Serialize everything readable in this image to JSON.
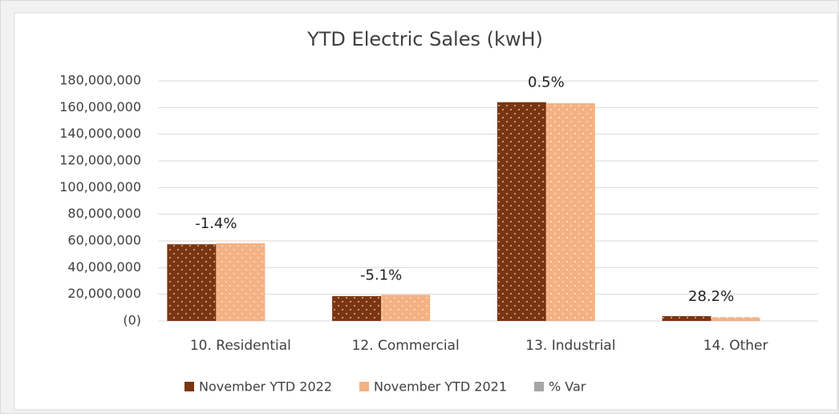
{
  "chart_data": {
    "type": "bar",
    "title": "YTD Electric Sales (kwH)",
    "categories": [
      "10. Residential",
      "12. Commercial",
      "13. Industrial",
      "14. Other"
    ],
    "series": [
      {
        "name": "November YTD 2022",
        "color": "#7b3510",
        "values": [
          57500000,
          18600000,
          164000000,
          3600000
        ]
      },
      {
        "name": "November YTD 2021",
        "color": "#f4b183",
        "values": [
          58300000,
          19600000,
          163200000,
          2800000
        ]
      },
      {
        "name": "% Var",
        "color": "#a5a5a5",
        "values": [
          -1.4,
          -5.1,
          0.5,
          28.2
        ],
        "value_labels": [
          "-1.4%",
          "-5.1%",
          "0.5%",
          "28.2%"
        ]
      }
    ],
    "ylim": [
      0,
      180000000
    ],
    "yticks": [
      {
        "value": 0,
        "label": "(0)"
      },
      {
        "value": 20000000,
        "label": "20,000,000"
      },
      {
        "value": 40000000,
        "label": "40,000,000"
      },
      {
        "value": 60000000,
        "label": "60,000,000"
      },
      {
        "value": 80000000,
        "label": "80,000,000"
      },
      {
        "value": 100000000,
        "label": "100,000,000"
      },
      {
        "value": 120000000,
        "label": "120,000,000"
      },
      {
        "value": 140000000,
        "label": "140,000,000"
      },
      {
        "value": 160000000,
        "label": "160,000,000"
      },
      {
        "value": 180000000,
        "label": "180,000,000"
      }
    ],
    "grid": true,
    "legend": "bottom"
  }
}
